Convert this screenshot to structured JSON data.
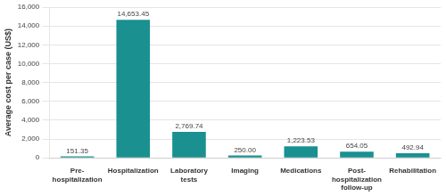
{
  "chart_data": {
    "type": "bar",
    "categories": [
      "Pre-\nhospitalization",
      "Hospitalization",
      "Laboratory\ntests",
      "Imaging",
      "Medications",
      "Post-\nhospitalization\nfollow-up",
      "Rehabilitation"
    ],
    "values": [
      151.35,
      14653.45,
      2769.74,
      250.0,
      1223.53,
      654.05,
      492.94
    ],
    "value_labels": [
      "151.35",
      "14,653.45",
      "2,769.74",
      "250.00",
      "1,223.53",
      "654.05",
      "492.94"
    ],
    "data_labels": true,
    "color": "#1a9090",
    "ylabel": "Average cost per case (US$)",
    "ylim": [
      0,
      16000
    ],
    "yticks": [
      0,
      {
        "value": 2000,
        "label": "2,000"
      },
      {
        "value": 4000,
        "label": "4,000"
      },
      {
        "value": 6000,
        "label": "6,000"
      },
      {
        "value": 8000,
        "label": "8,000"
      },
      {
        "value": 10000,
        "label": "10,000"
      },
      {
        "value": 12000,
        "label": "12,000"
      },
      {
        "value": 14000,
        "label": "14,000"
      },
      {
        "value": 16000,
        "label": "16,000"
      }
    ],
    "grid": true
  }
}
